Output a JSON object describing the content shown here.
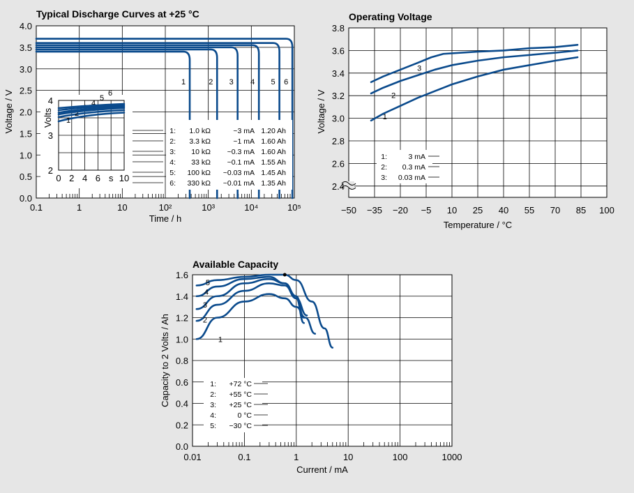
{
  "chart_data": [
    {
      "type": "line",
      "title": "Typical Discharge Curves at +25 °C",
      "xlabel": "Time / h",
      "ylabel": "Voltage / V",
      "xscale": "log",
      "xlim": [
        0.1,
        100000
      ],
      "ylim": [
        0,
        4
      ],
      "xticks": [
        "0.1",
        "1",
        "10",
        "10²",
        "10³",
        "10⁴",
        "10⁵"
      ],
      "yticks": [
        "0.0",
        "0.5",
        "1.0",
        "1.5",
        "2.0",
        "2.5",
        "3.0",
        "3.5",
        "4.0"
      ],
      "curve_color": "#0a4a8c",
      "series": [
        {
          "name": "1",
          "plateau": 3.4,
          "end_time": 370
        },
        {
          "name": "2",
          "plateau": 3.45,
          "end_time": 1600
        },
        {
          "name": "3",
          "plateau": 3.5,
          "end_time": 4800
        },
        {
          "name": "4",
          "plateau": 3.55,
          "end_time": 15000
        },
        {
          "name": "5",
          "plateau": 3.6,
          "end_time": 45000
        },
        {
          "name": "6",
          "plateau": 3.7,
          "end_time": 90000
        }
      ],
      "legend": [
        {
          "n": "1:",
          "r": "1.0 kΩ",
          "i": "~3 mA",
          "c": "1.20 Ah"
        },
        {
          "n": "2:",
          "r": "3.3 kΩ",
          "i": "~1 mA",
          "c": "1.60 Ah"
        },
        {
          "n": "3:",
          "r": "10 kΩ",
          "i": "~0.3 mA",
          "c": "1.60 Ah"
        },
        {
          "n": "4:",
          "r": "33 kΩ",
          "i": "~0.1 mA",
          "c": "1.55 Ah"
        },
        {
          "n": "5:",
          "r": "100 kΩ",
          "i": "~0.03 mA",
          "c": "1.45 Ah"
        },
        {
          "n": "6:",
          "r": "330 kΩ",
          "i": "~0.01 mA",
          "c": "1.35 Ah"
        }
      ],
      "inset": {
        "ylabel": "Volts",
        "xlim": [
          0,
          10
        ],
        "ylim": [
          2,
          4
        ],
        "xticks": [
          "0",
          "2",
          "4",
          "6",
          "s",
          "10"
        ],
        "yticks": [
          "2",
          "3",
          "4"
        ],
        "series": [
          {
            "name": "1",
            "y0": 3.4,
            "y1": 3.65
          },
          {
            "name": "2",
            "y0": 3.52,
            "y1": 3.72
          },
          {
            "name": "3",
            "y0": 3.6,
            "y1": 3.78
          },
          {
            "name": "4",
            "y0": 3.65,
            "y1": 3.82
          },
          {
            "name": "5",
            "y0": 3.72,
            "y1": 3.86
          },
          {
            "name": "6",
            "y0": 3.78,
            "y1": 3.9
          }
        ]
      }
    },
    {
      "type": "line",
      "title": "Operating Voltage",
      "xlabel": "Temperature / °C",
      "ylabel": "Voltage / V",
      "xlim": [
        -50,
        100
      ],
      "ylim": [
        2.3,
        3.8
      ],
      "xticks": [
        "−50",
        "−35",
        "−20",
        "−5",
        "10",
        "25",
        "40",
        "55",
        "70",
        "85",
        "100"
      ],
      "yticks": [
        "2.4",
        "2.6",
        "2.8",
        "3.0",
        "3.2",
        "3.4",
        "3.6",
        "3.8"
      ],
      "axis_break": true,
      "series": [
        {
          "name": "1",
          "x": [
            -37,
            -30,
            -20,
            -10,
            0,
            10,
            25,
            40,
            55,
            70,
            83
          ],
          "y": [
            2.98,
            3.04,
            3.11,
            3.18,
            3.24,
            3.3,
            3.37,
            3.43,
            3.47,
            3.51,
            3.54
          ]
        },
        {
          "name": "2",
          "x": [
            -37,
            -30,
            -20,
            -10,
            0,
            10,
            25,
            40,
            55,
            70,
            83
          ],
          "y": [
            3.22,
            3.27,
            3.33,
            3.38,
            3.43,
            3.47,
            3.51,
            3.54,
            3.56,
            3.58,
            3.6
          ]
        },
        {
          "name": "3",
          "x": [
            -37,
            -30,
            -20,
            -10,
            -2,
            5,
            25,
            40,
            55,
            70,
            83
          ],
          "y": [
            3.32,
            3.37,
            3.43,
            3.49,
            3.54,
            3.57,
            3.59,
            3.6,
            3.62,
            3.63,
            3.65
          ]
        }
      ],
      "legend": [
        {
          "n": "1:",
          "v": "3 mA"
        },
        {
          "n": "2:",
          "v": "0.3 mA"
        },
        {
          "n": "3:",
          "v": "0.03 mA"
        }
      ]
    },
    {
      "type": "line",
      "title": "Available Capacity",
      "xlabel": "Current / mA",
      "ylabel": "Capacity to 2 Volts / Ah",
      "xscale": "log",
      "xlim": [
        0.01,
        1000
      ],
      "ylim": [
        0,
        1.6
      ],
      "xticks": [
        "0.01",
        "0.1",
        "1",
        "10",
        "100",
        "1000"
      ],
      "yticks": [
        "0.0",
        "0.2",
        "0.4",
        "0.6",
        "0.8",
        "1.0",
        "1.2",
        "1.4",
        "1.6"
      ],
      "series": [
        {
          "name": "1",
          "x": [
            0.012,
            0.03,
            0.1,
            0.3,
            0.6,
            1.0,
            1.5,
            2.3
          ],
          "y": [
            1.0,
            1.2,
            1.35,
            1.42,
            1.38,
            1.3,
            1.2,
            1.05
          ]
        },
        {
          "name": "2",
          "x": [
            0.012,
            0.03,
            0.1,
            0.3,
            0.6,
            1.0,
            1.4
          ],
          "y": [
            1.17,
            1.32,
            1.45,
            1.52,
            1.5,
            1.38,
            1.15
          ]
        },
        {
          "name": "3",
          "x": [
            0.012,
            0.03,
            0.1,
            0.3,
            0.6,
            1.0,
            1.4
          ],
          "y": [
            1.28,
            1.4,
            1.52,
            1.56,
            1.52,
            1.4,
            1.2
          ]
        },
        {
          "name": "4",
          "x": [
            0.012,
            0.03,
            0.1,
            0.3,
            0.6,
            1.0,
            1.6
          ],
          "y": [
            1.4,
            1.49,
            1.56,
            1.58,
            1.52,
            1.38,
            1.22
          ]
        },
        {
          "name": "5",
          "x": [
            0.012,
            0.03,
            0.1,
            0.3,
            0.6,
            1.0,
            2.0,
            3.5,
            5.0
          ],
          "y": [
            1.5,
            1.55,
            1.58,
            1.6,
            1.6,
            1.55,
            1.35,
            1.1,
            0.92
          ]
        }
      ],
      "marker": {
        "x": 0.6,
        "y": 1.6
      },
      "legend": [
        {
          "n": "1:",
          "v": "+72 °C"
        },
        {
          "n": "2:",
          "v": "+55 °C"
        },
        {
          "n": "3:",
          "v": "+25 °C"
        },
        {
          "n": "4:",
          "v": "0 °C"
        },
        {
          "n": "5:",
          "v": "−30 °C"
        }
      ]
    }
  ]
}
